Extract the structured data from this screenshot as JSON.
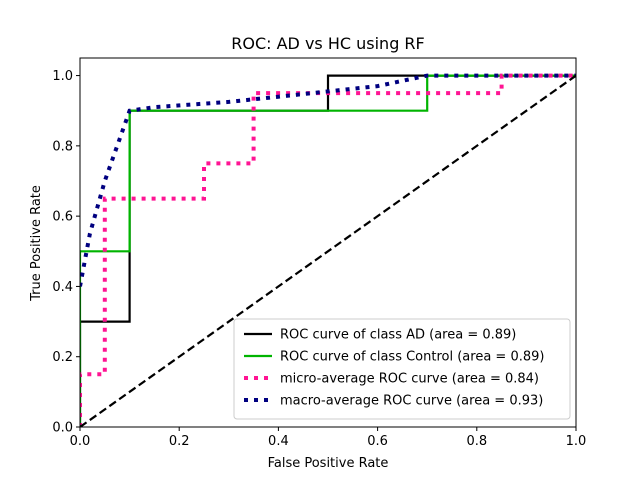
{
  "chart_data": {
    "type": "line",
    "title": "ROC: AD vs HC using RF",
    "xlabel": "False Positive Rate",
    "ylabel": "True Positive Rate",
    "xlim": [
      0,
      1
    ],
    "ylim": [
      0,
      1.05
    ],
    "grid": false,
    "legend_position": "lower-right",
    "xticks": [
      0,
      0.2,
      0.4,
      0.6,
      0.8,
      1.0
    ],
    "xtick_labels": [
      "0.0",
      "0.2",
      "0.4",
      "0.6",
      "0.8",
      "1.0"
    ],
    "yticks": [
      0,
      0.2,
      0.4,
      0.6,
      0.8,
      1.0
    ],
    "ytick_labels": [
      "0.0",
      "0.2",
      "0.4",
      "0.6",
      "0.8",
      "1.0"
    ],
    "series": [
      {
        "name": "ROC curve of class  AD (area = 0.89)",
        "color": "#000000",
        "style": "solid",
        "x": [
          0,
          0,
          0.1,
          0.1,
          0.5,
          0.5,
          0.7,
          0.7,
          1.0
        ],
        "y": [
          0,
          0.3,
          0.3,
          0.9,
          0.9,
          1.0,
          1.0,
          1.0,
          1.0
        ]
      },
      {
        "name": "ROC curve of class  Control (area = 0.89)",
        "color": "#00b400",
        "style": "solid",
        "x": [
          0,
          0,
          0.1,
          0.1,
          0.7,
          0.7,
          1.0
        ],
        "y": [
          0,
          0.5,
          0.5,
          0.9,
          0.9,
          1.0,
          1.0
        ]
      },
      {
        "name": "micro-average ROC curve (area = 0.84)",
        "color": "#ff1493",
        "style": "dotted",
        "x": [
          0,
          0,
          0.05,
          0.05,
          0.25,
          0.25,
          0.35,
          0.35,
          0.85,
          0.85,
          1.0
        ],
        "y": [
          0,
          0.15,
          0.15,
          0.65,
          0.65,
          0.75,
          0.75,
          0.95,
          0.95,
          1.0,
          1.0
        ]
      },
      {
        "name": "macro-average ROC curve (area = 0.93)",
        "color": "#000080",
        "style": "dotted",
        "x": [
          0,
          0.02,
          0.05,
          0.08,
          0.1,
          0.15,
          0.2,
          0.3,
          0.4,
          0.5,
          0.6,
          0.7,
          0.8,
          0.9,
          1.0
        ],
        "y": [
          0.4,
          0.55,
          0.7,
          0.82,
          0.9,
          0.91,
          0.915,
          0.925,
          0.94,
          0.955,
          0.97,
          1.0,
          1.0,
          1.0,
          1.0
        ]
      },
      {
        "name": "",
        "color": "#000000",
        "style": "dashed",
        "x": [
          0,
          1
        ],
        "y": [
          0,
          1
        ]
      }
    ]
  }
}
